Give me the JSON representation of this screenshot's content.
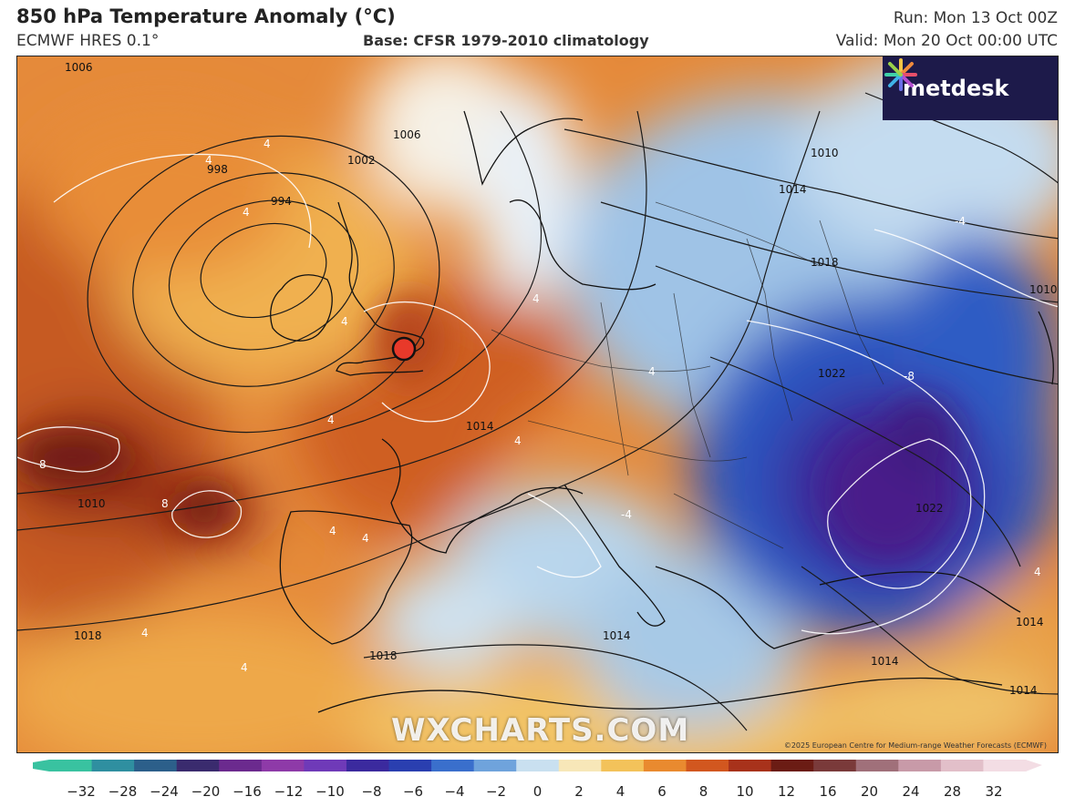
{
  "header": {
    "title": "850 hPa Temperature Anomaly (°C)",
    "model": "ECMWF HRES 0.1°",
    "base": "Base: CFSR 1979-2010 climatology",
    "run": "Run: Mon 13 Oct 00Z",
    "valid": "Valid: Mon 20 Oct 00:00 UTC"
  },
  "map": {
    "logo": "metdesk",
    "watermark": "WXCHARTS.COM",
    "copyright": "©2025 European Centre for Medium-range Weather Forecasts (ECMWF)",
    "isobar_labels": [
      "1006",
      "1002",
      "998",
      "994",
      "1006",
      "1010",
      "1014",
      "1018",
      "1014",
      "1010",
      "1010",
      "1018",
      "1018",
      "1014",
      "1014",
      "1014",
      "1022",
      "1022",
      "1014"
    ],
    "anomaly_labels": [
      "4",
      "4",
      "4",
      "4",
      "4",
      "4",
      "4",
      "4",
      "8",
      "8",
      "4",
      "4",
      "4",
      "4",
      "-4",
      "-4",
      "-8",
      "4"
    ],
    "marker": "red circle marker",
    "colors": {
      "warm_strong": "#a8321b",
      "warm": "#e07a2c",
      "mild": "#f0c060",
      "neutral": "#f4f6f8",
      "cool": "#9ec8e8",
      "cold": "#2e5fbf",
      "very_cold": "#3b1a8e",
      "marker": "#e8392a"
    }
  },
  "colorbar": {
    "ticks": [
      "−32",
      "−28",
      "−24",
      "−20",
      "−16",
      "−12",
      "−10",
      "−8",
      "−6",
      "−4",
      "−2",
      "0",
      "2",
      "4",
      "6",
      "8",
      "10",
      "12",
      "16",
      "20",
      "24",
      "28",
      "32"
    ],
    "colors": [
      "#39c2a0",
      "#2f8fa0",
      "#2c5f8a",
      "#3a2b6e",
      "#6b2a8e",
      "#8e3aa8",
      "#6f3ab8",
      "#3b2a9e",
      "#2a3fb0",
      "#3a6fcc",
      "#6fa3dc",
      "#c9e0f0",
      "#f7e7b8",
      "#f3c25a",
      "#e98a2f",
      "#d2571f",
      "#a8321b",
      "#6b1c14",
      "#7a3a3a",
      "#a0707a",
      "#c89aa8",
      "#e2bfc9",
      "#f3dde4"
    ]
  }
}
